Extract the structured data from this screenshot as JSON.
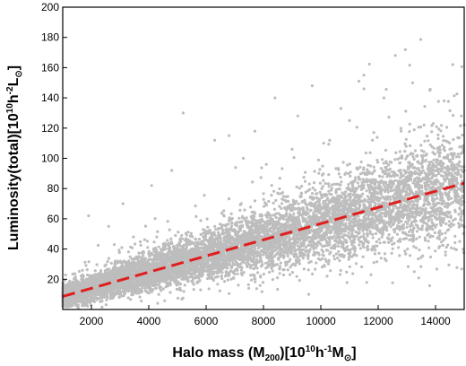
{
  "chart_data": {
    "type": "scatter",
    "title": "",
    "xlabel": {
      "prefix": "Halo mass (M",
      "sub1": "200",
      "mid1": ")[10",
      "sup1": "10",
      "mid2": "h",
      "sup2": "-1",
      "mid3": "M",
      "sub2": "⊙",
      "suffix": "]"
    },
    "ylabel": {
      "prefix": "Luminosity(total)[10",
      "sup1": "10",
      "mid1": "h",
      "sup2": "-2",
      "mid2": "L",
      "sub1": "⊙",
      "suffix": "]"
    },
    "xlim": [
      1000,
      15000
    ],
    "ylim": [
      0,
      200
    ],
    "x_ticks": [
      2000,
      4000,
      6000,
      8000,
      10000,
      12000,
      14000
    ],
    "y_ticks": [
      20,
      40,
      60,
      80,
      100,
      120,
      140,
      160,
      180,
      200
    ],
    "x_tick_labels": [
      "2000",
      "4000",
      "6000",
      "8000",
      "10000",
      "12000",
      "14000"
    ],
    "y_tick_labels": [
      "20",
      "40",
      "60",
      "80",
      "100",
      "120",
      "140",
      "160",
      "180",
      "200"
    ],
    "grid": false,
    "series": [
      {
        "type": "scatter",
        "color": "#bdbdbd",
        "approx_trend": {
          "slope": 0.00535,
          "intercept": 3.3
        },
        "highlight_points": [
          [
            5200,
            130
          ],
          [
            12600,
            168
          ],
          [
            12950,
            172
          ],
          [
            11500,
            155
          ],
          [
            9700,
            148
          ],
          [
            14600,
            162
          ],
          [
            13200,
            150
          ],
          [
            13800,
            145
          ],
          [
            12200,
            140
          ],
          [
            10700,
            133
          ],
          [
            8400,
            140
          ],
          [
            6800,
            115
          ],
          [
            7700,
            118
          ],
          [
            9200,
            128
          ],
          [
            11000,
            125
          ],
          [
            14300,
            138
          ],
          [
            14900,
            128
          ],
          [
            6300,
            112
          ],
          [
            4100,
            82
          ],
          [
            3100,
            70
          ],
          [
            1900,
            62
          ],
          [
            2600,
            55
          ],
          [
            4800,
            92
          ],
          [
            7300,
            100
          ],
          [
            10100,
            110
          ],
          [
            12800,
            118
          ],
          [
            13600,
            122
          ],
          [
            11800,
            112
          ],
          [
            9000,
            106
          ],
          [
            8100,
            96
          ]
        ]
      },
      {
        "type": "line",
        "style": "dashed",
        "color": "#e11d1d",
        "x": [
          1000,
          15000
        ],
        "y": [
          8.65,
          83.55
        ]
      }
    ]
  }
}
